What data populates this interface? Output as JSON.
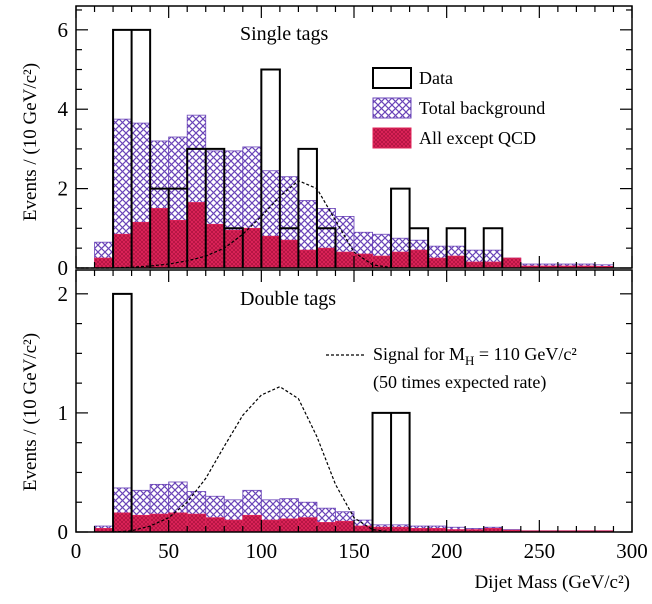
{
  "colors": {
    "data": "#000000",
    "total_background_fill": "#6a44b8",
    "all_except_qcd_fill": "#e0245a",
    "signal": "#000000",
    "background": "#ffffff"
  },
  "chart_data": [
    {
      "type": "histogram",
      "title": "Single tags",
      "ylabel": "Events / (10 GeV/c²)",
      "xlabel": "",
      "xlim": [
        0,
        300
      ],
      "ylim": [
        0,
        6.6
      ],
      "yticks": [
        0,
        2,
        4,
        6
      ],
      "bin_edges": [
        10,
        20,
        30,
        40,
        50,
        60,
        70,
        80,
        90,
        100,
        110,
        120,
        130,
        140,
        150,
        160,
        170,
        180,
        190,
        200,
        210,
        220,
        230,
        240,
        250,
        260,
        270,
        280,
        290
      ],
      "series": [
        {
          "name": "Data",
          "values": [
            0,
            6,
            6,
            2,
            2,
            3,
            3,
            1,
            0,
            5,
            1,
            3,
            1,
            0,
            0,
            0,
            2,
            1,
            0,
            1,
            0,
            1,
            0,
            0,
            0,
            0,
            0,
            0
          ]
        },
        {
          "name": "Total background",
          "values": [
            0.65,
            3.75,
            3.65,
            3.2,
            3.3,
            3.85,
            2.95,
            2.95,
            3.05,
            2.45,
            2.3,
            1.7,
            1.5,
            1.3,
            0.9,
            0.85,
            0.75,
            0.7,
            0.55,
            0.55,
            0.45,
            0.45,
            0.25,
            0.1,
            0.1,
            0.1,
            0.1,
            0.08
          ]
        },
        {
          "name": "All except QCD",
          "values": [
            0.25,
            0.85,
            1.15,
            1.5,
            1.2,
            1.65,
            1.1,
            0.95,
            1.0,
            0.8,
            0.7,
            0.45,
            0.5,
            0.4,
            0.35,
            0.3,
            0.4,
            0.45,
            0.25,
            0.3,
            0.15,
            0.15,
            0.25,
            0.05,
            0.05,
            0.05,
            0.05,
            0.04
          ]
        }
      ],
      "signal_curve": {
        "x": [
          0,
          20,
          30,
          40,
          50,
          60,
          70,
          80,
          90,
          100,
          110,
          120,
          130,
          140,
          150,
          160,
          170,
          180
        ],
        "y": [
          0,
          0,
          0.02,
          0.05,
          0.1,
          0.18,
          0.3,
          0.5,
          0.85,
          1.3,
          1.8,
          2.2,
          2.0,
          1.2,
          0.4,
          0.08,
          0.01,
          0
        ]
      },
      "legend": {
        "placement": "top-right",
        "entries": [
          "Data",
          "Total background",
          "All except QCD"
        ]
      }
    },
    {
      "type": "histogram",
      "title": "Double tags",
      "ylabel": "Events / (10 GeV/c²)",
      "xlabel": "Dijet Mass (GeV/c²)",
      "xlim": [
        0,
        300
      ],
      "ylim": [
        0,
        2.2
      ],
      "yticks": [
        0,
        1,
        2
      ],
      "xticks": [
        0,
        50,
        100,
        150,
        200,
        250,
        300
      ],
      "bin_edges": [
        10,
        20,
        30,
        40,
        50,
        60,
        70,
        80,
        90,
        100,
        110,
        120,
        130,
        140,
        150,
        160,
        170,
        180,
        190,
        200,
        210,
        220,
        230,
        240,
        250,
        260,
        270,
        280,
        290
      ],
      "series": [
        {
          "name": "Data",
          "values": [
            0,
            2,
            0,
            0,
            0,
            0,
            0,
            0,
            0,
            0,
            0,
            0,
            0,
            0,
            0,
            1,
            1,
            0,
            0,
            0,
            0,
            0,
            0,
            0,
            0,
            0,
            0,
            0
          ]
        },
        {
          "name": "Total background",
          "values": [
            0.05,
            0.37,
            0.35,
            0.4,
            0.42,
            0.34,
            0.3,
            0.27,
            0.35,
            0.27,
            0.28,
            0.25,
            0.2,
            0.17,
            0.1,
            0.06,
            0.06,
            0.05,
            0.05,
            0.04,
            0.03,
            0.04,
            0.02,
            0.01,
            0.01,
            0.01,
            0.01,
            0.01
          ]
        },
        {
          "name": "All except QCD",
          "values": [
            0.03,
            0.16,
            0.14,
            0.15,
            0.16,
            0.15,
            0.12,
            0.1,
            0.14,
            0.1,
            0.11,
            0.12,
            0.08,
            0.09,
            0.05,
            0.04,
            0.04,
            0.03,
            0.03,
            0.02,
            0.02,
            0.03,
            0.015,
            0.01,
            0.01,
            0.01,
            0.01,
            0.01
          ]
        }
      ],
      "signal_curve": {
        "x": [
          20,
          30,
          40,
          50,
          60,
          70,
          80,
          90,
          100,
          110,
          120,
          130,
          140,
          150,
          160,
          170
        ],
        "y": [
          0,
          0.01,
          0.05,
          0.12,
          0.25,
          0.45,
          0.72,
          0.98,
          1.15,
          1.22,
          1.12,
          0.8,
          0.4,
          0.12,
          0.02,
          0
        ]
      },
      "signal_label": "Signal for M",
      "signal_label_subscript": "H",
      "signal_label_rest": " = 110 GeV/c²",
      "signal_note": "(50 times expected rate)"
    }
  ]
}
